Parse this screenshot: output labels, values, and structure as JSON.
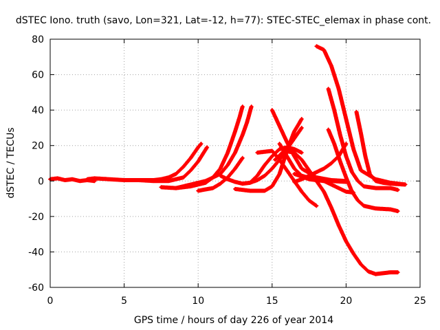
{
  "chart_data": {
    "type": "scatter",
    "title": "dSTEC Iono. truth (savo, Lon=321, Lat=-12, h=77): STEC-STEC_elemax in phase cont.",
    "xlabel": "GPS time / hours of day 226 of year 2014",
    "ylabel": "dSTEC  / TECUs",
    "xlim": [
      0,
      25
    ],
    "ylim": [
      -60,
      80
    ],
    "xticks": [
      0,
      5,
      10,
      15,
      20,
      25
    ],
    "yticks": [
      -60,
      -40,
      -20,
      0,
      20,
      40,
      60,
      80
    ],
    "grid": true,
    "marker": "plus",
    "color": "#ff0000",
    "series": [
      {
        "x": [
          0.0,
          0.5,
          1.0,
          1.5,
          2.0,
          2.5,
          3.0
        ],
        "y": [
          1.0,
          1.5,
          0.5,
          1.0,
          0.0,
          0.5,
          0.0
        ]
      },
      {
        "x": [
          2.5,
          3.0,
          4.0,
          5.0,
          6.0,
          7.0,
          7.5,
          8.0,
          8.5,
          9.0,
          9.5,
          10.0,
          10.2
        ],
        "y": [
          1.0,
          1.5,
          1.0,
          0.5,
          0.5,
          0.5,
          1.0,
          2.0,
          4.0,
          8.0,
          13.0,
          19.0,
          21.0
        ]
      },
      {
        "x": [
          6.0,
          7.0,
          8.0,
          9.0,
          9.5,
          10.0,
          10.3,
          10.6
        ],
        "y": [
          0.5,
          0.0,
          0.0,
          2.0,
          6.0,
          11.0,
          15.0,
          19.0
        ]
      },
      {
        "x": [
          7.5,
          8.5,
          9.5,
          10.5,
          11.0,
          11.5,
          12.0,
          12.5,
          12.8,
          13.0
        ],
        "y": [
          -3.5,
          -4.0,
          -3.0,
          -1.0,
          2.0,
          7.0,
          16.0,
          28.0,
          36.0,
          42.0
        ]
      },
      {
        "x": [
          8.5,
          9.5,
          10.5,
          11.5,
          12.0,
          12.5,
          13.0,
          13.3,
          13.6
        ],
        "y": [
          -4.0,
          -2.0,
          0.0,
          4.0,
          9.0,
          16.0,
          26.0,
          33.0,
          42.0
        ]
      },
      {
        "x": [
          10.0,
          11.0,
          11.5,
          12.0,
          12.5,
          13.0
        ],
        "y": [
          -5.5,
          -4.0,
          -1.5,
          2.0,
          7.0,
          13.0
        ]
      },
      {
        "x": [
          11.5,
          12.0,
          12.5,
          13.0,
          13.5,
          14.0,
          14.5,
          15.0,
          15.5,
          16.0,
          16.5,
          17.0
        ],
        "y": [
          3.0,
          1.0,
          -0.5,
          -1.5,
          -1.0,
          0.5,
          3.0,
          7.0,
          12.0,
          18.0,
          24.0,
          30.0
        ]
      },
      {
        "x": [
          12.5,
          13.5,
          14.5,
          15.0,
          15.5,
          16.0,
          16.5,
          17.0
        ],
        "y": [
          -4.5,
          -5.5,
          -5.5,
          -3.0,
          4.0,
          17.0,
          28.0,
          35.0
        ]
      },
      {
        "x": [
          13.5,
          14.0,
          14.5,
          15.0,
          15.5,
          16.0,
          16.5,
          17.0
        ],
        "y": [
          -1.0,
          3.0,
          9.0,
          14.0,
          18.0,
          19.0,
          18.0,
          16.0
        ]
      },
      {
        "x": [
          14.0,
          15.0,
          15.5,
          16.0,
          16.5,
          17.0,
          17.5,
          18.0
        ],
        "y": [
          16.0,
          17.0,
          12.0,
          6.0,
          0.0,
          -6.0,
          -11.0,
          -14.0
        ]
      },
      {
        "x": [
          15.0,
          15.5,
          16.0,
          16.5,
          17.0,
          18.0,
          19.0,
          20.0
        ],
        "y": [
          40.0,
          31.0,
          22.0,
          14.0,
          7.0,
          2.0,
          0.5,
          0.0
        ]
      },
      {
        "x": [
          15.5,
          16.0,
          16.5,
          17.0,
          18.0,
          19.0,
          20.0
        ],
        "y": [
          21.0,
          14.0,
          7.0,
          3.0,
          0.5,
          0.0,
          -0.5
        ]
      },
      {
        "x": [
          15.2,
          15.8,
          16.5,
          17.0,
          17.5,
          18.0,
          18.5,
          19.0,
          19.5,
          20.0,
          20.5,
          21.0,
          21.5,
          22.0,
          22.5,
          23.0,
          23.5
        ],
        "y": [
          12.0,
          17.0,
          16.0,
          12.0,
          6.0,
          0.0,
          -6.0,
          -15.0,
          -25.0,
          -34.0,
          -41.0,
          -47.0,
          -51.0,
          -52.5,
          -52.0,
          -51.5,
          -51.5
        ]
      },
      {
        "x": [
          16.5,
          17.0,
          17.5,
          18.0,
          18.5,
          19.0,
          19.5,
          20.0
        ],
        "y": [
          -0.5,
          1.0,
          3.0,
          5.0,
          7.0,
          10.0,
          14.0,
          21.0
        ]
      },
      {
        "x": [
          16.5,
          17.5,
          18.5,
          19.0,
          19.5,
          20.0,
          20.5
        ],
        "y": [
          4.0,
          1.0,
          0.0,
          -2.0,
          -4.0,
          -6.0,
          -6.5
        ]
      },
      {
        "x": [
          18.0,
          18.5,
          19.0,
          19.5,
          20.0,
          20.5,
          21.0,
          22.0,
          23.0,
          24.0
        ],
        "y": [
          76.0,
          74.0,
          65.0,
          52.0,
          35.0,
          18.0,
          6.0,
          1.0,
          -1.0,
          -2.0
        ]
      },
      {
        "x": [
          18.8,
          19.2,
          19.6,
          20.0,
          20.4,
          20.8,
          21.2,
          22.0,
          23.0,
          23.5
        ],
        "y": [
          52.0,
          40.0,
          26.0,
          14.0,
          5.0,
          0.0,
          -3.0,
          -4.0,
          -4.0,
          -5.0
        ]
      },
      {
        "x": [
          18.8,
          19.2,
          19.6,
          20.0,
          20.4,
          20.8,
          21.2,
          22.0,
          23.0,
          23.5
        ],
        "y": [
          29.0,
          21.0,
          11.0,
          2.0,
          -6.0,
          -11.0,
          -14.0,
          -15.5,
          -16.0,
          -17.0
        ]
      },
      {
        "x": [
          20.7,
          21.0,
          21.3,
          21.6,
          22.0,
          22.5,
          23.0,
          24.0
        ],
        "y": [
          39.0,
          27.0,
          14.0,
          4.0,
          0.0,
          -1.0,
          -1.5,
          -2.0
        ]
      }
    ]
  }
}
